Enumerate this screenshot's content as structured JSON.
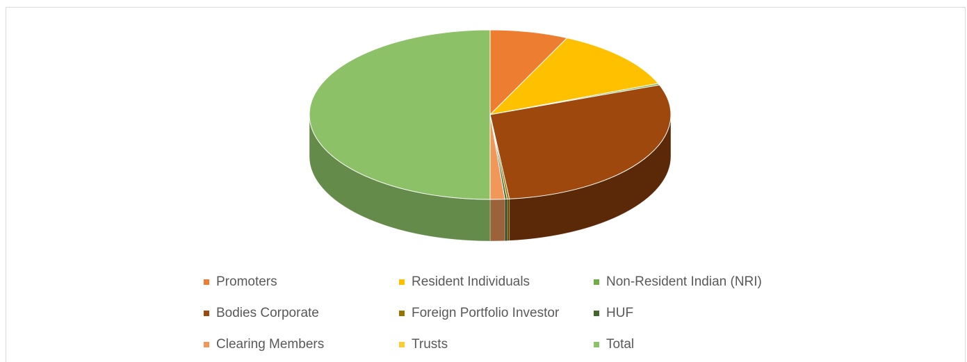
{
  "chart_data": {
    "type": "pie3d",
    "categories": [
      "Promoters",
      "Resident Individuals",
      "Non-Resident Indian (NRI)",
      "Bodies Corporate",
      "Foreign Portfolio Investor",
      "HUF",
      "Clearing Members",
      "Trusts",
      "Total"
    ],
    "values": [
      7,
      12,
      0.3,
      29,
      0.2,
      0.2,
      1.3,
      0,
      50
    ],
    "colors": [
      "#ed7d31",
      "#ffc000",
      "#70ad47",
      "#9e480e",
      "#997300",
      "#43682b",
      "#f1975a",
      "#ffcd33",
      "#8cc168"
    ],
    "legend": "bottom"
  }
}
